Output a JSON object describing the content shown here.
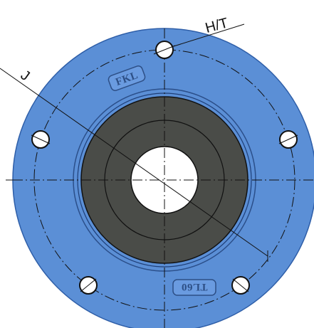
{
  "labels": {
    "hole_dimension": "H/T",
    "bolt_circle_dimension": "J"
  },
  "stamps": {
    "brand": "FKL",
    "model": "TL60"
  },
  "colors": {
    "flange": "#5b8fd6",
    "flange_edge": "#2e5ea8",
    "housing": "#4a4c48",
    "bore": "#ffffff",
    "outline": "#111111"
  },
  "bolt_holes": {
    "count": 5
  }
}
